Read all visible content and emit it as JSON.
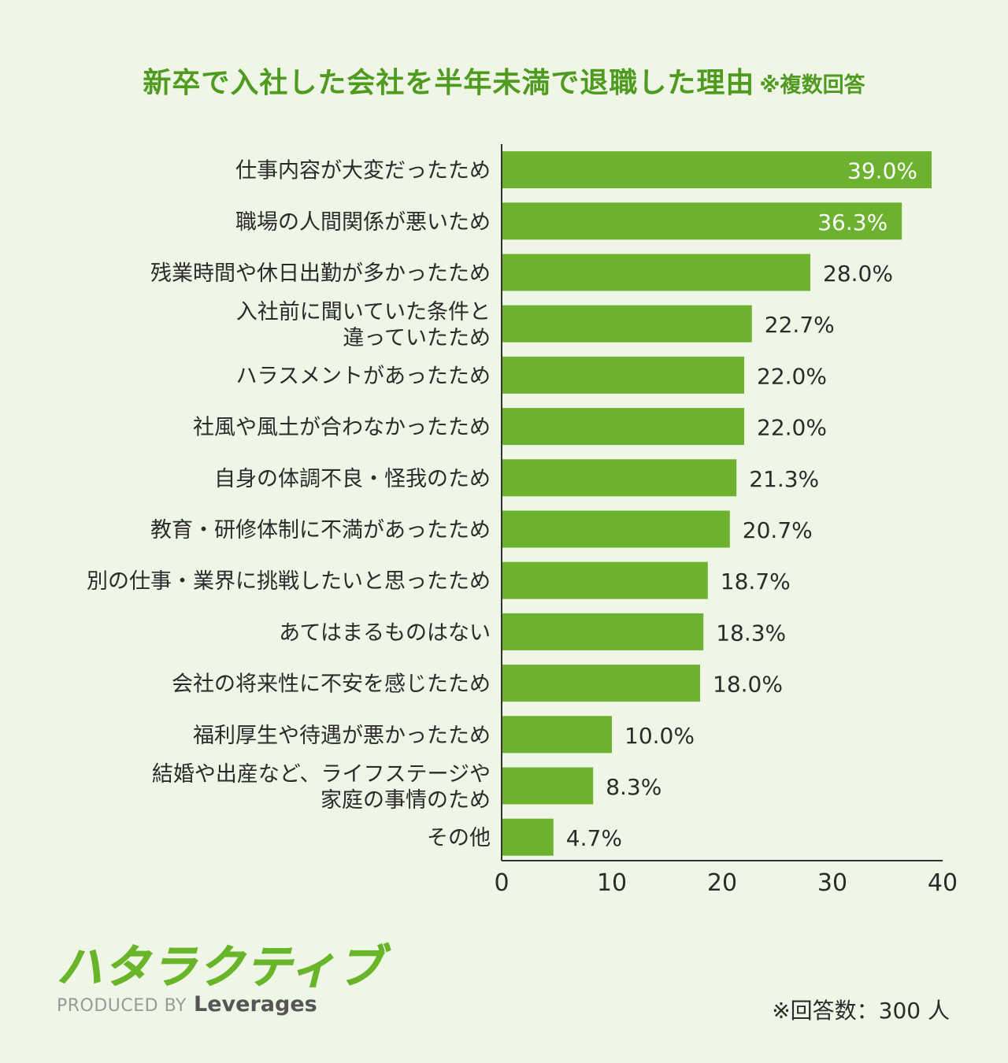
{
  "chart_data": {
    "type": "bar",
    "orientation": "horizontal",
    "title": "新卒で入社した会社を半年未満で退職した理由",
    "subtitle": "※複数回答",
    "categories": [
      "仕事内容が大変だったため",
      "職場の人間関係が悪いため",
      "残業時間や休日出勤が多かったため",
      "入社前に聞いていた条件と違っていたため",
      "ハラスメントがあったため",
      "社風や風土が合わなかったため",
      "自身の体調不良・怪我のため",
      "教育・研修体制に不満があったため",
      "別の仕事・業界に挑戦したいと思ったため",
      "あてはまるものはない",
      "会社の将来性に不安を感じたため",
      "福利厚生や待遇が悪かったため",
      "結婚や出産など、ライフステージや家庭の事情のため",
      "その他"
    ],
    "values": [
      39.0,
      36.3,
      28.0,
      22.7,
      22.0,
      22.0,
      21.3,
      20.7,
      18.7,
      18.3,
      18.0,
      10.0,
      8.3,
      4.7
    ],
    "value_labels": [
      "39.0%",
      "36.3%",
      "28.0%",
      "22.7%",
      "22.0%",
      "22.0%",
      "21.3%",
      "20.7%",
      "18.7%",
      "18.3%",
      "18.0%",
      "10.0%",
      "8.3%",
      "4.7%"
    ],
    "xticks": [
      "0",
      "10",
      "20",
      "30",
      "40"
    ],
    "xlim": [
      0,
      40
    ],
    "grid": false,
    "bar_color": "#6db22f",
    "axis_color": "#333333"
  },
  "logo": {
    "brand": "ハタラクティブ",
    "produced_by": "PRODUCED BY",
    "company": "Leverages"
  },
  "respondents": "※回答数：300 人"
}
